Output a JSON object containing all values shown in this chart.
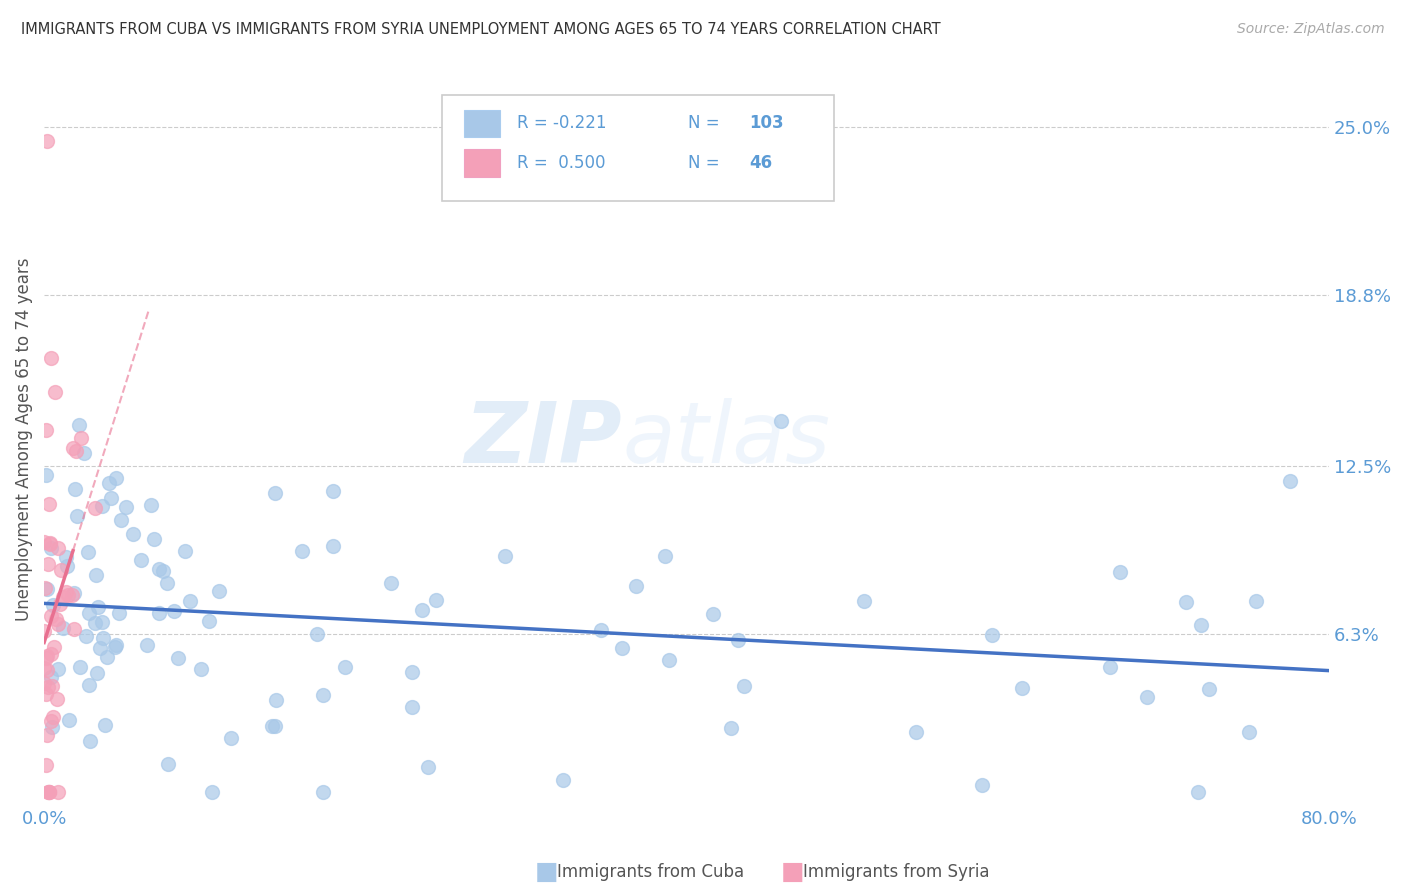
{
  "title": "IMMIGRANTS FROM CUBA VS IMMIGRANTS FROM SYRIA UNEMPLOYMENT AMONG AGES 65 TO 74 YEARS CORRELATION CHART",
  "source": "Source: ZipAtlas.com",
  "ylabel": "Unemployment Among Ages 65 to 74 years",
  "xlim": [
    0,
    0.8
  ],
  "ylim": [
    0,
    0.27
  ],
  "yticks": [
    0.063,
    0.125,
    0.188,
    0.25
  ],
  "ytick_labels": [
    "6.3%",
    "12.5%",
    "18.8%",
    "25.0%"
  ],
  "cuba_color": "#a8c8e8",
  "syria_color": "#f4a0b8",
  "cuba_R": -0.221,
  "cuba_N": 103,
  "syria_R": 0.5,
  "syria_N": 46,
  "legend_label_cuba": "Immigrants from Cuba",
  "legend_label_syria": "Immigrants from Syria",
  "watermark": "ZIPatlas",
  "blue_line_color": "#4472c4",
  "pink_line_color": "#e87090",
  "grid_color": "#cccccc",
  "background_color": "#ffffff",
  "tick_label_color": "#5b9bd5",
  "legend_text_color": "#5b9bd5",
  "watermark_color": "#c8ddf0"
}
